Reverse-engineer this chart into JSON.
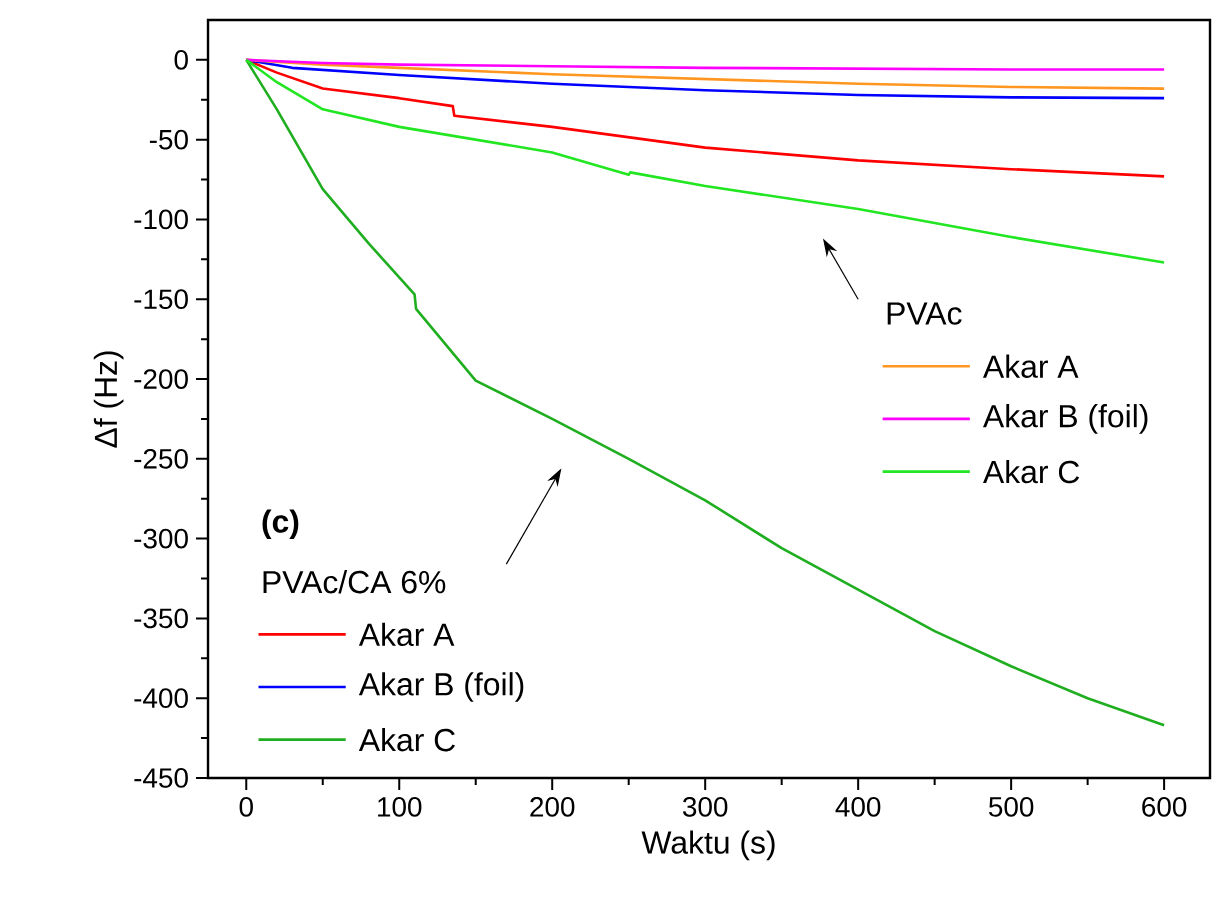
{
  "chart_data": {
    "type": "line",
    "xlabel": "Waktu (s)",
    "ylabel": "Δf (Hz)",
    "xlim": [
      -25,
      630
    ],
    "ylim": [
      -450,
      25
    ],
    "xticks": [
      0,
      100,
      200,
      300,
      400,
      500,
      600
    ],
    "yticks": [
      -450,
      -400,
      -350,
      -300,
      -250,
      -200,
      -150,
      -100,
      -50,
      0
    ],
    "grid": false,
    "legend": "bottom left",
    "line_style": "solid",
    "annotations": [
      "(c)",
      "PVAc",
      "PVAc/CA 6%"
    ],
    "series": [
      {
        "name": "Akar A",
        "color": "#ff0000",
        "x": [
          0,
          20,
          50,
          100,
          135,
          136,
          200,
          300,
          400,
          500,
          600
        ],
        "values": [
          0,
          -8,
          -18,
          -24,
          -29,
          -35,
          -42,
          -55,
          -63,
          -68.5,
          -73
        ]
      },
      {
        "name": "Akar B (foil)",
        "color": "#0000ff",
        "x": [
          0,
          30,
          100,
          200,
          300,
          400,
          500,
          600
        ],
        "values": [
          0,
          -5,
          -9.5,
          -15,
          -19,
          -22,
          -23.5,
          -24
        ]
      },
      {
        "name": "Akar C",
        "color": "#1fae1f",
        "x": [
          0,
          20,
          50,
          80,
          110,
          111,
          150,
          200,
          250,
          300,
          350,
          400,
          450,
          500,
          550,
          600
        ],
        "values": [
          0,
          -31,
          -81,
          -115,
          -147,
          -156,
          -201,
          -225,
          -250,
          -276,
          -306,
          -332,
          -358,
          -380,
          -400,
          -417
        ]
      },
      {
        "name": "Akar A",
        "color": "#ff9620",
        "x": [
          0,
          50,
          100,
          200,
          300,
          400,
          500,
          600
        ],
        "values": [
          0,
          -3,
          -5,
          -9,
          -12,
          -15,
          -17,
          -18
        ]
      },
      {
        "name": "Akar B (foil)",
        "color": "#ff00ff",
        "x": [
          0,
          50,
          100,
          200,
          300,
          400,
          500,
          600
        ],
        "values": [
          0,
          -2,
          -3,
          -4,
          -5,
          -5.5,
          -6,
          -6
        ]
      },
      {
        "name": "Akar C",
        "color": "#22e622",
        "x": [
          0,
          20,
          50,
          100,
          200,
          250,
          251,
          300,
          400,
          500,
          600
        ],
        "values": [
          0,
          -14,
          -31,
          -42,
          -58,
          -72,
          -70.5,
          -79,
          -93.5,
          -111,
          -127
        ]
      }
    ]
  }
}
